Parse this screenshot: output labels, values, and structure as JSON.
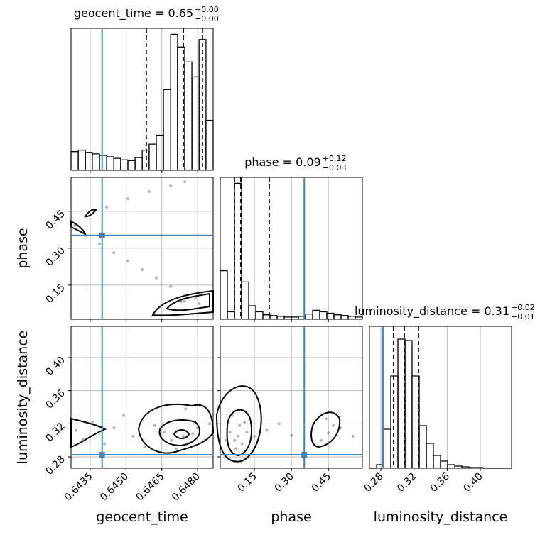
{
  "chart_data": {
    "type": "corner",
    "truth_color": "#4682b4",
    "hist_color": "#000000",
    "grid": true,
    "params": [
      {
        "label": "geocent_time",
        "title": "geocent_time = 0.65",
        "title_sup": "+0.00",
        "title_sub": "−0.00",
        "lim": [
          0.6427,
          0.64865
        ],
        "ticks": [
          0.6435,
          {
            "value": 0.645,
            "label": "0.6450"
          },
          0.6465,
          {
            "value": 0.648,
            "label": "0.6480"
          }
        ],
        "truth": 0.644,
        "quantiles": [
          0.64585,
          0.6474,
          0.6482
        ],
        "bins": [
          0.6427,
          0.643,
          0.6433,
          0.64359,
          0.64389,
          0.64419,
          0.64449,
          0.64478,
          0.64508,
          0.64538,
          0.64568,
          0.64597,
          0.64627,
          0.64657,
          0.64687,
          0.64716,
          0.64746,
          0.64776,
          0.64806,
          0.64835,
          0.64865
        ],
        "counts": [
          25,
          27,
          24,
          22,
          20,
          18,
          16,
          14,
          13,
          17,
          27,
          35,
          47,
          108,
          182,
          165,
          145,
          125,
          175,
          67
        ],
        "count_lim": [
          0,
          190
        ]
      },
      {
        "label": "phase",
        "title": "phase = 0.09",
        "title_sup": "+0.12",
        "title_sub": "−0.03",
        "lim": [
          0.0115,
          0.5875
        ],
        "ticks": [
          0.15,
          {
            "value": 0.3,
            "label": "0.30"
          },
          0.45
        ],
        "truth": 0.352,
        "quantiles": [
          0.069,
          0.095,
          0.21
        ],
        "bins": [
          0.0115,
          0.0403,
          0.0691,
          0.0979,
          0.1267,
          0.1555,
          0.1843,
          0.2131,
          0.2419,
          0.2707,
          0.2995,
          0.3283,
          0.3571,
          0.3859,
          0.4147,
          0.4435,
          0.4723,
          0.5011,
          0.5299,
          0.5587,
          0.5875
        ],
        "counts": [
          65,
          10,
          182,
          50,
          18,
          10,
          6,
          5,
          4,
          3,
          3,
          4,
          7,
          12,
          10,
          8,
          6,
          5,
          4,
          3
        ],
        "count_lim": [
          0,
          190
        ]
      },
      {
        "label": "luminosity_distance",
        "title": "luminosity_distance = 0.31",
        "title_sup": "+0.02",
        "title_sub": "−0.01",
        "lim": [
          0.2663,
          0.4377
        ],
        "ticks": [
          0.28,
          0.32,
          0.36,
          {
            "value": 0.4,
            "label": "0.40"
          }
        ],
        "truth": 0.2826,
        "quantiles": [
          0.2954,
          0.3083,
          0.3254
        ],
        "bins": [
          0.2663,
          0.2749,
          0.2834,
          0.292,
          0.3006,
          0.3092,
          0.3177,
          0.3263,
          0.3349,
          0.3434,
          0.352,
          0.3606,
          0.3692,
          0.3777,
          0.3863,
          0.3949,
          0.4034,
          0.412,
          0.4206,
          0.4291,
          0.4377
        ],
        "counts": [
          0,
          5,
          55,
          130,
          182,
          180,
          130,
          60,
          35,
          18,
          10,
          5,
          3,
          2,
          1,
          1,
          0,
          0,
          0,
          0
        ],
        "count_lim": [
          0,
          200
        ]
      }
    ],
    "samples": [
      {
        "x_param": 0,
        "y_param": 1,
        "x": [
          0.6427,
          0.6433,
          0.64389,
          0.64449,
          0.64508,
          0.64568,
          0.64627,
          0.64687,
          0.64746,
          0.64806,
          0.64731,
          0.6482,
          0.64746,
          0.6479,
          0.6433,
          0.64419,
          0.64508,
          0.64597,
          0.64687,
          0.64746,
          0.64285
        ],
        "y": [
          0.386,
          0.351,
          0.317,
          0.282,
          0.248,
          0.213,
          0.179,
          0.144,
          0.109,
          0.075,
          0.083,
          0.112,
          0.085,
          0.1,
          0.429,
          0.467,
          0.501,
          0.53,
          0.553,
          0.57,
          0.392
        ]
      },
      {
        "x_param": 0,
        "y_param": 2,
        "x": [
          0.6429,
          0.6432,
          0.6436,
          0.6441,
          0.6445,
          0.6449,
          0.6453,
          0.6458,
          0.6462,
          0.6466,
          0.6469,
          0.6472,
          0.6474,
          0.6476,
          0.6478,
          0.648,
          0.6483,
          0.6485,
          0.6475,
          0.6471
        ],
        "y": [
          0.312,
          0.301,
          0.322,
          0.296,
          0.315,
          0.33,
          0.305,
          0.292,
          0.318,
          0.31,
          0.3,
          0.325,
          0.305,
          0.296,
          0.308,
          0.315,
          0.3,
          0.32,
          0.338,
          0.29
        ]
      },
      {
        "x_param": 1,
        "y_param": 2,
        "x": [
          0.05,
          0.07,
          0.083,
          0.09,
          0.1,
          0.12,
          0.06,
          0.075,
          0.11,
          0.15,
          0.2,
          0.3,
          0.42,
          0.45,
          0.47,
          0.5,
          0.44,
          0.55,
          0.035,
          0.25
        ],
        "y": [
          0.31,
          0.3,
          0.305,
          0.318,
          0.296,
          0.31,
          0.33,
          0.29,
          0.322,
          0.305,
          0.312,
          0.306,
          0.3,
          0.309,
          0.318,
          0.315,
          0.326,
          0.305,
          0.3,
          0.32
        ]
      }
    ]
  }
}
